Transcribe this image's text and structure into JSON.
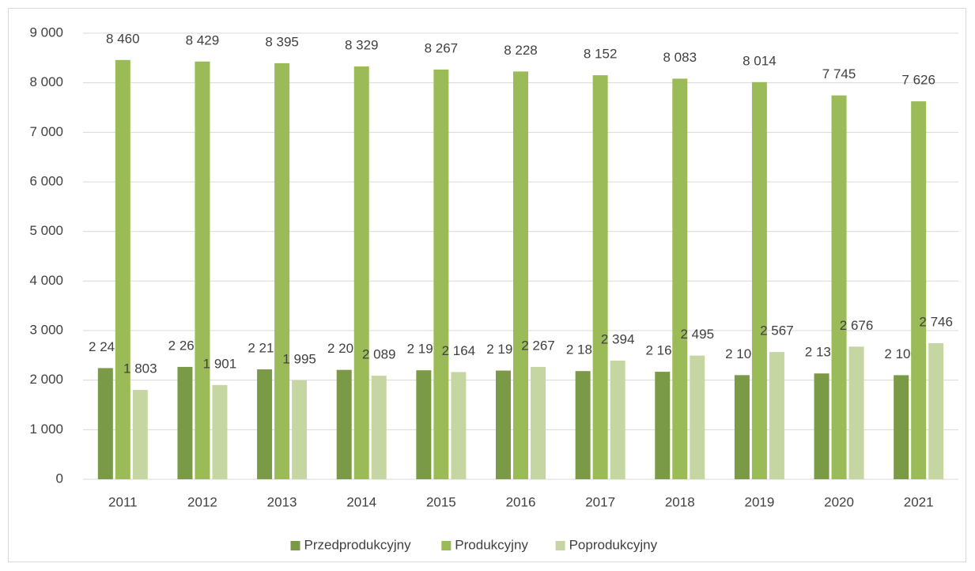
{
  "chart_data": {
    "type": "bar",
    "categories": [
      "2011",
      "2012",
      "2013",
      "2014",
      "2015",
      "2016",
      "2017",
      "2018",
      "2019",
      "2020",
      "2021"
    ],
    "series": [
      {
        "name": "Przedprodukcyjny",
        "color": "#7a9a48",
        "values": [
          2243,
          2267,
          2217,
          2207,
          2199,
          2193,
          2183,
          2169,
          2101,
          2135,
          2100
        ],
        "value_labels": [
          "2 243",
          "2 267",
          "2 217",
          "2 207",
          "2 199",
          "2 193",
          "2 183",
          "2 169",
          "2 101",
          "2 135",
          "2 100"
        ]
      },
      {
        "name": "Produkcyjny",
        "color": "#9bbb59",
        "values": [
          8460,
          8429,
          8395,
          8329,
          8267,
          8228,
          8152,
          8083,
          8014,
          7745,
          7626
        ],
        "value_labels": [
          "8 460",
          "8 429",
          "8 395",
          "8 329",
          "8 267",
          "8 228",
          "8 152",
          "8 083",
          "8 014",
          "7 745",
          "7 626"
        ]
      },
      {
        "name": "Poprodukcyjny",
        "color": "#c5d6a3",
        "values": [
          1803,
          1901,
          1995,
          2089,
          2164,
          2267,
          2394,
          2495,
          2567,
          2676,
          2746
        ],
        "value_labels": [
          "1 803",
          "1 901",
          "1 995",
          "2 089",
          "2 164",
          "2 267",
          "2 394",
          "2 495",
          "2 567",
          "2 676",
          "2 746"
        ]
      }
    ],
    "ylim": [
      0,
      9000
    ],
    "yticks": [
      0,
      {
        "value": 1000,
        "label": "1 000"
      },
      {
        "value": 2000,
        "label": "2 000"
      },
      {
        "value": 3000,
        "label": "3 000"
      },
      {
        "value": 4000,
        "label": "4 000"
      },
      {
        "value": 5000,
        "label": "5 000"
      },
      {
        "value": 6000,
        "label": "6 000"
      },
      {
        "value": 7000,
        "label": "7 000"
      },
      {
        "value": 8000,
        "label": "8 000"
      },
      {
        "value": 9000,
        "label": "9 000"
      }
    ],
    "grid": true,
    "legend": "bottom"
  }
}
